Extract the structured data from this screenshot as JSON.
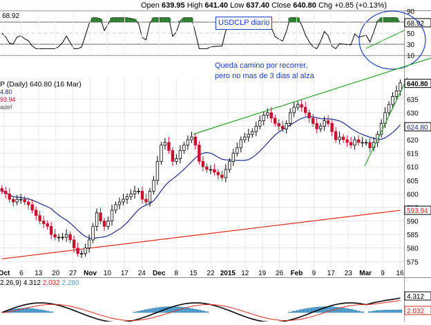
{
  "header": {
    "open_label": "Open",
    "open": "639.95",
    "high_label": "High",
    "high": "641.40",
    "low_label": "Low",
    "low": "637.40",
    "close_label": "Close",
    "close": "640.80",
    "chg_label": "Chg",
    "chg": "+0.85 (+0.13%)"
  },
  "rsi_panel": {
    "value": "68.92",
    "value_badge": "68.92",
    "levels": [
      "90",
      "70",
      "50",
      "30",
      "10"
    ]
  },
  "price_panel": {
    "legend_title": "P (Daily) 640.80 (16 Mar)",
    "legend_line2": "4.80",
    "legend_line3": "93.94",
    "legend_line4": "adef",
    "last_price_badge": "640.80",
    "ma_short_badge": "624.80",
    "ma_long_badge": "593.94"
  },
  "macd_panel": {
    "label_prefix": "2,26,9)",
    "macd": "4.312",
    "signal": "2.032",
    "histogram": "2.280",
    "badge_macd": "4.312",
    "badge_signal": "2.032"
  },
  "annotations": {
    "box_title": "USDCLP diario",
    "note_line1": "Queda camino por recorrer,",
    "note_line2": "pero no mas de 3 dias al alza"
  },
  "colors": {
    "up_candle": "#000000",
    "down_candle": "#c8102e",
    "ma_short": "#1f2b8f",
    "ma_long": "#e0281e",
    "trendline": "#2ca02c",
    "annotation": "#1a3cc8",
    "macd_hist": "#4f9fd0",
    "rsi_fill_over": "#2e7d32"
  },
  "chart_data": {
    "type": "candlestick",
    "title": "",
    "x_tick_labels": [
      "Oct",
      "6",
      "13",
      "20",
      "27",
      "Nov",
      "10",
      "17",
      "24",
      "Dec",
      "8",
      "15",
      "22",
      "2015",
      "12",
      "19",
      "26",
      "Feb",
      "9",
      "17",
      "23",
      "Mar",
      "9",
      "16"
    ],
    "y_tick_labels": [
      "575",
      "580",
      "585",
      "590",
      "595",
      "600",
      "605",
      "610",
      "615",
      "620",
      "625",
      "630",
      "635"
    ],
    "ylim": [
      572,
      643
    ],
    "grid": true,
    "series": [
      {
        "name": "",
        "values": [
          601,
          600,
          598,
          597,
          598,
          598,
          597,
          596,
          594,
          592,
          590,
          589,
          588,
          585,
          584,
          584,
          584,
          585,
          583,
          580,
          578,
          578,
          580,
          583,
          588,
          593,
          590,
          588,
          590,
          594,
          596,
          597,
          598,
          599,
          600,
          601,
          601,
          598,
          597,
          601,
          605,
          612,
          618,
          619,
          616,
          612,
          613,
          616,
          618,
          620,
          621,
          618,
          612,
          610,
          609,
          609,
          608,
          607,
          606,
          609,
          612,
          615,
          617,
          620,
          621,
          622,
          623,
          625,
          627,
          629,
          630,
          628,
          626,
          625,
          624,
          626,
          630,
          632,
          633,
          632,
          630,
          628,
          626,
          624,
          625,
          627,
          626,
          623,
          620,
          621,
          620,
          619,
          618,
          620,
          619,
          619,
          619,
          617,
          619,
          622,
          626,
          630,
          633,
          636,
          638,
          641
        ]
      }
    ],
    "ma_short_last": 624.8,
    "ma_long_last": 593.94
  }
}
